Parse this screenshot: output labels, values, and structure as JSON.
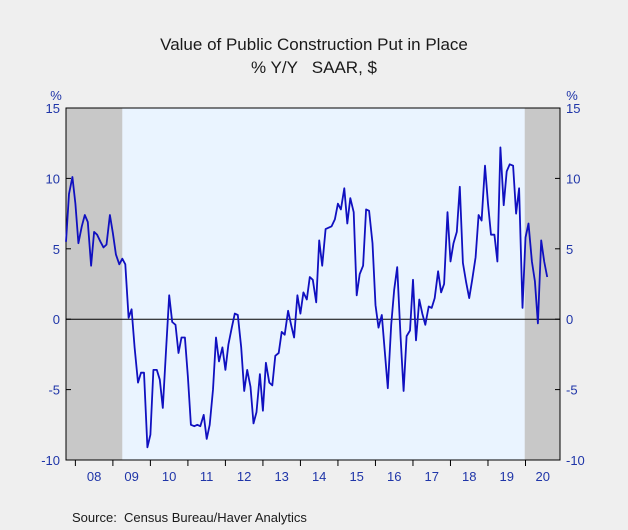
{
  "chart_data": {
    "type": "line",
    "title": "Value of Public Construction Put in Place",
    "subtitle": "% Y/Y   SAAR, $",
    "ylabel_left": "%",
    "ylabel_right": "%",
    "ylim": [
      -10,
      15
    ],
    "yticks": [
      15,
      10,
      5,
      0,
      -5,
      -10
    ],
    "ytick_labels": [
      "15",
      "10",
      "5",
      "0",
      "-5",
      "-10"
    ],
    "xlim": [
      2007.75,
      2020.92
    ],
    "xtick_labels": [
      "08",
      "09",
      "10",
      "11",
      "12",
      "13",
      "14",
      "15",
      "16",
      "17",
      "18",
      "19",
      "20"
    ],
    "xtick_positions": [
      2008,
      2009,
      2010,
      2011,
      2012,
      2013,
      2014,
      2015,
      2016,
      2017,
      2018,
      2019,
      2020
    ],
    "recessions": [
      [
        2007.75,
        2009.25
      ],
      [
        2019.98,
        2020.92
      ]
    ],
    "zero_line": true,
    "colors": {
      "line": "#1010c0",
      "recession": "#c8c8c8",
      "plot_bg": "#eaf4ff",
      "axis_text": "#1f35a8"
    },
    "series": [
      {
        "values": [
          [
            2007.75,
            5.5
          ],
          [
            2007.83,
            8.9
          ],
          [
            2007.92,
            10.1
          ],
          [
            2008.0,
            8.2
          ],
          [
            2008.08,
            5.4
          ],
          [
            2008.17,
            6.6
          ],
          [
            2008.25,
            7.4
          ],
          [
            2008.33,
            6.9
          ],
          [
            2008.42,
            3.8
          ],
          [
            2008.5,
            6.2
          ],
          [
            2008.58,
            6.0
          ],
          [
            2008.67,
            5.5
          ],
          [
            2008.75,
            5.1
          ],
          [
            2008.83,
            5.3
          ],
          [
            2008.92,
            7.4
          ],
          [
            2009.0,
            6.1
          ],
          [
            2009.08,
            4.6
          ],
          [
            2009.17,
            3.9
          ],
          [
            2009.25,
            4.3
          ],
          [
            2009.33,
            3.9
          ],
          [
            2009.42,
            0.1
          ],
          [
            2009.5,
            0.7
          ],
          [
            2009.58,
            -2.0
          ],
          [
            2009.67,
            -4.5
          ],
          [
            2009.75,
            -3.8
          ],
          [
            2009.83,
            -3.8
          ],
          [
            2009.92,
            -9.1
          ],
          [
            2010.0,
            -8.2
          ],
          [
            2010.08,
            -3.6
          ],
          [
            2010.17,
            -3.6
          ],
          [
            2010.25,
            -4.3
          ],
          [
            2010.33,
            -6.3
          ],
          [
            2010.42,
            -2.0
          ],
          [
            2010.5,
            1.7
          ],
          [
            2010.58,
            -0.2
          ],
          [
            2010.67,
            -0.4
          ],
          [
            2010.75,
            -2.4
          ],
          [
            2010.83,
            -1.3
          ],
          [
            2010.92,
            -1.3
          ],
          [
            2011.0,
            -4.1
          ],
          [
            2011.08,
            -7.5
          ],
          [
            2011.17,
            -7.6
          ],
          [
            2011.25,
            -7.5
          ],
          [
            2011.33,
            -7.6
          ],
          [
            2011.42,
            -6.8
          ],
          [
            2011.5,
            -8.5
          ],
          [
            2011.58,
            -7.5
          ],
          [
            2011.67,
            -5.0
          ],
          [
            2011.75,
            -1.3
          ],
          [
            2011.83,
            -3.0
          ],
          [
            2011.92,
            -2.0
          ],
          [
            2012.0,
            -3.6
          ],
          [
            2012.08,
            -1.8
          ],
          [
            2012.17,
            -0.6
          ],
          [
            2012.25,
            0.4
          ],
          [
            2012.33,
            0.3
          ],
          [
            2012.42,
            -2.0
          ],
          [
            2012.5,
            -5.1
          ],
          [
            2012.58,
            -3.6
          ],
          [
            2012.67,
            -4.8
          ],
          [
            2012.75,
            -7.4
          ],
          [
            2012.83,
            -6.6
          ],
          [
            2012.92,
            -3.9
          ],
          [
            2013.0,
            -6.5
          ],
          [
            2013.08,
            -3.1
          ],
          [
            2013.17,
            -4.5
          ],
          [
            2013.25,
            -4.7
          ],
          [
            2013.33,
            -2.6
          ],
          [
            2013.42,
            -2.4
          ],
          [
            2013.5,
            -0.9
          ],
          [
            2013.58,
            -1.1
          ],
          [
            2013.67,
            0.6
          ],
          [
            2013.75,
            -0.4
          ],
          [
            2013.83,
            -1.3
          ],
          [
            2013.92,
            1.7
          ],
          [
            2014.0,
            0.4
          ],
          [
            2014.08,
            1.9
          ],
          [
            2014.17,
            1.4
          ],
          [
            2014.25,
            3.0
          ],
          [
            2014.33,
            2.8
          ],
          [
            2014.42,
            1.2
          ],
          [
            2014.5,
            5.6
          ],
          [
            2014.58,
            3.8
          ],
          [
            2014.67,
            6.4
          ],
          [
            2014.75,
            6.5
          ],
          [
            2014.83,
            6.6
          ],
          [
            2014.92,
            7.1
          ],
          [
            2015.0,
            8.2
          ],
          [
            2015.08,
            7.8
          ],
          [
            2015.17,
            9.3
          ],
          [
            2015.25,
            6.8
          ],
          [
            2015.33,
            8.6
          ],
          [
            2015.42,
            7.6
          ],
          [
            2015.5,
            1.7
          ],
          [
            2015.58,
            3.2
          ],
          [
            2015.67,
            3.8
          ],
          [
            2015.75,
            7.8
          ],
          [
            2015.83,
            7.7
          ],
          [
            2015.92,
            5.4
          ],
          [
            2016.0,
            1.0
          ],
          [
            2016.08,
            -0.6
          ],
          [
            2016.17,
            0.3
          ],
          [
            2016.25,
            -2.3
          ],
          [
            2016.33,
            -4.9
          ],
          [
            2016.42,
            -0.4
          ],
          [
            2016.5,
            2.1
          ],
          [
            2016.58,
            3.7
          ],
          [
            2016.67,
            -1.3
          ],
          [
            2016.75,
            -5.1
          ],
          [
            2016.83,
            -1.2
          ],
          [
            2016.92,
            -0.8
          ],
          [
            2017.0,
            2.8
          ],
          [
            2017.08,
            -1.5
          ],
          [
            2017.17,
            1.4
          ],
          [
            2017.25,
            0.4
          ],
          [
            2017.33,
            -0.4
          ],
          [
            2017.42,
            0.9
          ],
          [
            2017.5,
            0.8
          ],
          [
            2017.58,
            1.5
          ],
          [
            2017.67,
            3.4
          ],
          [
            2017.75,
            1.9
          ],
          [
            2017.83,
            2.5
          ],
          [
            2017.92,
            7.6
          ],
          [
            2018.0,
            4.1
          ],
          [
            2018.08,
            5.4
          ],
          [
            2018.17,
            6.2
          ],
          [
            2018.25,
            9.4
          ],
          [
            2018.33,
            4.0
          ],
          [
            2018.42,
            2.6
          ],
          [
            2018.5,
            1.5
          ],
          [
            2018.58,
            2.8
          ],
          [
            2018.67,
            4.4
          ],
          [
            2018.75,
            7.4
          ],
          [
            2018.83,
            7.0
          ],
          [
            2018.92,
            10.9
          ],
          [
            2019.0,
            8.2
          ],
          [
            2019.08,
            6.0
          ],
          [
            2019.17,
            6.0
          ],
          [
            2019.25,
            4.1
          ],
          [
            2019.33,
            12.2
          ],
          [
            2019.42,
            8.1
          ],
          [
            2019.5,
            10.5
          ],
          [
            2019.58,
            11.0
          ],
          [
            2019.67,
            10.9
          ],
          [
            2019.75,
            7.5
          ],
          [
            2019.83,
            9.3
          ],
          [
            2019.92,
            0.8
          ],
          [
            2020.0,
            5.8
          ],
          [
            2020.08,
            6.8
          ],
          [
            2020.17,
            4.1
          ],
          [
            2020.25,
            2.7
          ],
          [
            2020.33,
            -0.3
          ],
          [
            2020.42,
            5.6
          ],
          [
            2020.5,
            4.1
          ],
          [
            2020.58,
            3.0
          ]
        ]
      }
    ]
  },
  "source": "Source:  Census Bureau/Haver Analytics"
}
